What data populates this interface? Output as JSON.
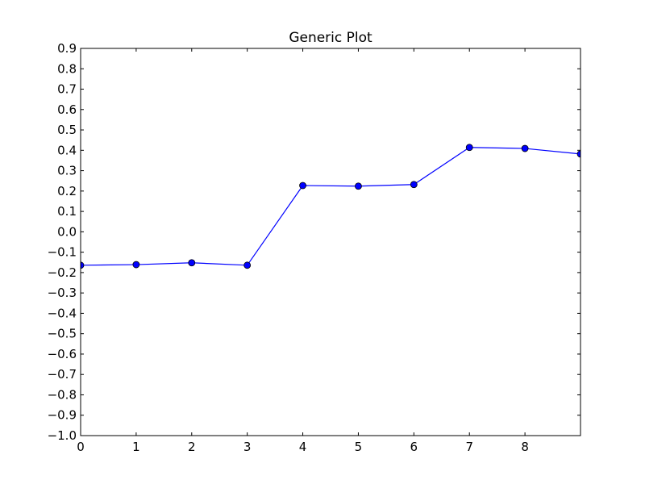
{
  "chart_data": {
    "type": "line",
    "title": "Generic Plot",
    "xlabel": "",
    "ylabel": "",
    "xlim": [
      0,
      9
    ],
    "ylim": [
      -1.0,
      0.9
    ],
    "x_ticks": [
      "0",
      "1",
      "2",
      "3",
      "4",
      "5",
      "6",
      "7",
      "8"
    ],
    "y_ticks": [
      "0.9",
      "0.8",
      "0.7",
      "0.6",
      "0.5",
      "0.4",
      "0.3",
      "0.2",
      "0.1",
      "0.0",
      "−0.1",
      "−0.2",
      "−0.3",
      "−0.4",
      "−0.5",
      "−0.6",
      "−0.7",
      "−0.8",
      "−0.9",
      "−1.0"
    ],
    "grid": false,
    "series": [
      {
        "color": "#0000ff",
        "marker": "circle",
        "x": [
          0,
          1,
          2,
          3,
          4,
          5,
          6,
          7,
          8,
          9
        ],
        "y": [
          -0.164,
          -0.161,
          -0.152,
          -0.164,
          0.227,
          0.224,
          0.232,
          0.414,
          0.409,
          0.382
        ]
      }
    ]
  }
}
